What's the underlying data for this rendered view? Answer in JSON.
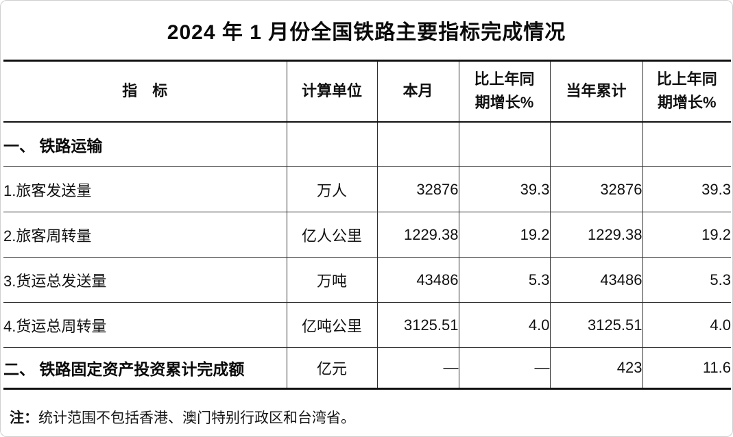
{
  "title": "2024 年 1 月份全国铁路主要指标完成情况",
  "table": {
    "headers": {
      "indicator": "指　标",
      "unit": "计算单位",
      "month": "本月",
      "month_growth": "比上年同\n期增长%",
      "ytd": "当年累计",
      "ytd_growth": "比上年同\n期增长%"
    },
    "rows": [
      {
        "label": "一、 铁路运输",
        "unit": "",
        "month": "",
        "month_growth": "",
        "ytd": "",
        "ytd_growth": ""
      },
      {
        "label": "1.旅客发送量",
        "unit": "万人",
        "month": "32876",
        "month_growth": "39.3",
        "ytd": "32876",
        "ytd_growth": "39.3"
      },
      {
        "label": "2.旅客周转量",
        "unit": "亿人公里",
        "month": "1229.38",
        "month_growth": "19.2",
        "ytd": "1229.38",
        "ytd_growth": "19.2"
      },
      {
        "label": "3.货运总发送量",
        "unit": "万吨",
        "month": "43486",
        "month_growth": "5.3",
        "ytd": "43486",
        "ytd_growth": "5.3"
      },
      {
        "label": "4.货运总周转量",
        "unit": "亿吨公里",
        "month": "3125.51",
        "month_growth": "4.0",
        "ytd": "3125.51",
        "ytd_growth": "4.0"
      },
      {
        "label": "二、 铁路固定资产投资累计完成额",
        "unit": "亿元",
        "month": "—",
        "month_growth": "—",
        "ytd": "423",
        "ytd_growth": "11.6"
      }
    ]
  },
  "note": {
    "prefix": "注：",
    "text": "统计范围不包括香港、澳门特别行政区和台湾省。"
  },
  "colors": {
    "text": "#111111",
    "thick_rule": "#101010",
    "thin_rule": "#2a2a2a",
    "frame": "#cfcfcf",
    "background": "#ffffff"
  }
}
